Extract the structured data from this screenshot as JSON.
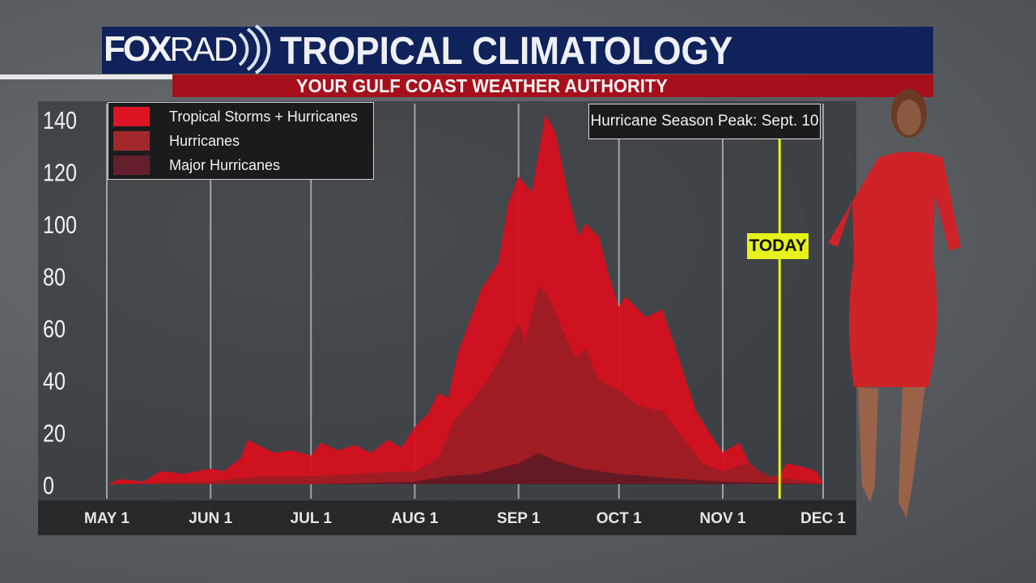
{
  "header": {
    "logo": "FOXRAD",
    "title": "TROPICAL CLIMATOLOGY",
    "subtitle": "YOUR GULF COAST WEATHER AUTHORITY"
  },
  "annotations": {
    "peak": "Hurricane Season Peak: Sept. 10",
    "today_label": "TODAY",
    "today_date": "11-18"
  },
  "colors": {
    "header_blue": "#10225a",
    "header_red": "#a6101c",
    "today_line": "#e7f21a"
  },
  "chart_data": {
    "type": "area",
    "ylim": [
      0,
      140
    ],
    "yticks": [
      "0",
      "20",
      "40",
      "60",
      "80",
      "100",
      "120",
      "140"
    ],
    "xlim": [
      "05-01",
      "12-01"
    ],
    "xticks": [
      {
        "date": "05-01",
        "label": "MAY 1"
      },
      {
        "date": "06-01",
        "label": "JUN 1"
      },
      {
        "date": "07-01",
        "label": "JUL 1"
      },
      {
        "date": "08-01",
        "label": "AUG 1"
      },
      {
        "date": "09-01",
        "label": "SEP 1"
      },
      {
        "date": "10-01",
        "label": "OCT 1"
      },
      {
        "date": "11-01",
        "label": "NOV 1"
      },
      {
        "date": "12-01",
        "label": "DEC 1"
      }
    ],
    "grid": "vertical",
    "legend": "top-left",
    "series": [
      {
        "name": "Tropical Storms + Hurricanes",
        "color": "#d7101f",
        "points": [
          [
            "05-01",
            0
          ],
          [
            "05-05",
            2
          ],
          [
            "05-12",
            1
          ],
          [
            "05-17",
            5
          ],
          [
            "05-24",
            4
          ],
          [
            "06-01",
            6
          ],
          [
            "06-05",
            5
          ],
          [
            "06-10",
            10
          ],
          [
            "06-12",
            17
          ],
          [
            "06-20",
            12
          ],
          [
            "06-25",
            13
          ],
          [
            "07-01",
            11
          ],
          [
            "07-04",
            16
          ],
          [
            "07-09",
            13
          ],
          [
            "07-14",
            15
          ],
          [
            "07-19",
            12
          ],
          [
            "07-24",
            17
          ],
          [
            "07-28",
            14
          ],
          [
            "08-01",
            22
          ],
          [
            "08-05",
            27
          ],
          [
            "08-08",
            35
          ],
          [
            "08-11",
            33
          ],
          [
            "08-14",
            51
          ],
          [
            "08-17",
            61
          ],
          [
            "08-21",
            75
          ],
          [
            "08-26",
            85
          ],
          [
            "08-29",
            108
          ],
          [
            "09-01",
            118
          ],
          [
            "09-05",
            112
          ],
          [
            "09-09",
            142
          ],
          [
            "09-12",
            135
          ],
          [
            "09-16",
            110
          ],
          [
            "09-19",
            95
          ],
          [
            "09-21",
            100
          ],
          [
            "09-25",
            95
          ],
          [
            "09-28",
            80
          ],
          [
            "10-01",
            68
          ],
          [
            "10-03",
            72
          ],
          [
            "10-09",
            64
          ],
          [
            "10-14",
            67
          ],
          [
            "10-19",
            48
          ],
          [
            "10-24",
            28
          ],
          [
            "10-28",
            20
          ],
          [
            "11-01",
            12
          ],
          [
            "11-06",
            16
          ],
          [
            "11-09",
            8
          ],
          [
            "11-14",
            3
          ],
          [
            "11-18",
            3
          ],
          [
            "11-20",
            8
          ],
          [
            "11-24",
            7
          ],
          [
            "11-29",
            5
          ],
          [
            "12-01",
            0
          ]
        ]
      },
      {
        "name": "Hurricanes",
        "color": "#9a1e24",
        "points": [
          [
            "05-01",
            0
          ],
          [
            "06-01",
            1
          ],
          [
            "06-15",
            3
          ],
          [
            "07-01",
            3
          ],
          [
            "07-15",
            4
          ],
          [
            "08-01",
            5
          ],
          [
            "08-08",
            10
          ],
          [
            "08-13",
            25
          ],
          [
            "08-18",
            32
          ],
          [
            "08-23",
            40
          ],
          [
            "08-27",
            50
          ],
          [
            "09-01",
            62
          ],
          [
            "09-03",
            55
          ],
          [
            "09-07",
            76
          ],
          [
            "09-10",
            72
          ],
          [
            "09-14",
            60
          ],
          [
            "09-18",
            48
          ],
          [
            "09-21",
            52
          ],
          [
            "09-25",
            40
          ],
          [
            "10-01",
            36
          ],
          [
            "10-07",
            30
          ],
          [
            "10-14",
            28
          ],
          [
            "10-20",
            18
          ],
          [
            "10-26",
            8
          ],
          [
            "11-01",
            5
          ],
          [
            "11-08",
            8
          ],
          [
            "11-15",
            3
          ],
          [
            "11-22",
            2
          ],
          [
            "12-01",
            0
          ]
        ]
      },
      {
        "name": "Major Hurricanes",
        "color": "#5e1a26",
        "points": [
          [
            "05-01",
            0
          ],
          [
            "07-01",
            0
          ],
          [
            "08-01",
            1
          ],
          [
            "08-10",
            3
          ],
          [
            "08-20",
            4
          ],
          [
            "09-01",
            8
          ],
          [
            "09-07",
            12
          ],
          [
            "09-12",
            9
          ],
          [
            "09-20",
            6
          ],
          [
            "10-01",
            4
          ],
          [
            "10-10",
            3
          ],
          [
            "10-20",
            2
          ],
          [
            "11-01",
            1
          ],
          [
            "12-01",
            0
          ]
        ]
      }
    ]
  }
}
